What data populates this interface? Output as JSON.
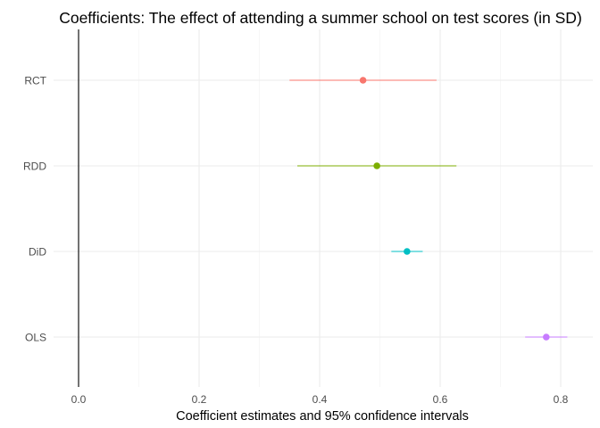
{
  "chart_data": {
    "type": "scatter",
    "title": "Coefficients: The effect of attending a summer school on test scores (in SD)",
    "xlabel": "Coefficient estimates and 95% confidence intervals",
    "ylabel": "",
    "xlim": [
      -0.02,
      0.845
    ],
    "x_ticks": [
      0.0,
      0.2,
      0.4,
      0.6,
      0.8
    ],
    "x_tick_labels": [
      "0.0",
      "0.2",
      "0.4",
      "0.6",
      "0.8"
    ],
    "categories": [
      "RCT",
      "RDD",
      "DiD",
      "OLS"
    ],
    "points": [
      {
        "label": "RCT",
        "estimate": 0.472,
        "ci_low": 0.35,
        "ci_high": 0.594,
        "color": "#F8766D"
      },
      {
        "label": "RDD",
        "estimate": 0.495,
        "ci_low": 0.363,
        "ci_high": 0.627,
        "color": "#7CAE00"
      },
      {
        "label": "DiD",
        "estimate": 0.545,
        "ci_low": 0.519,
        "ci_high": 0.571,
        "color": "#00BFC4"
      },
      {
        "label": "OLS",
        "estimate": 0.776,
        "ci_low": 0.741,
        "ci_high": 0.811,
        "color": "#C77CFF"
      }
    ],
    "reference_line": 0.0,
    "grid": true,
    "legend": "none"
  }
}
